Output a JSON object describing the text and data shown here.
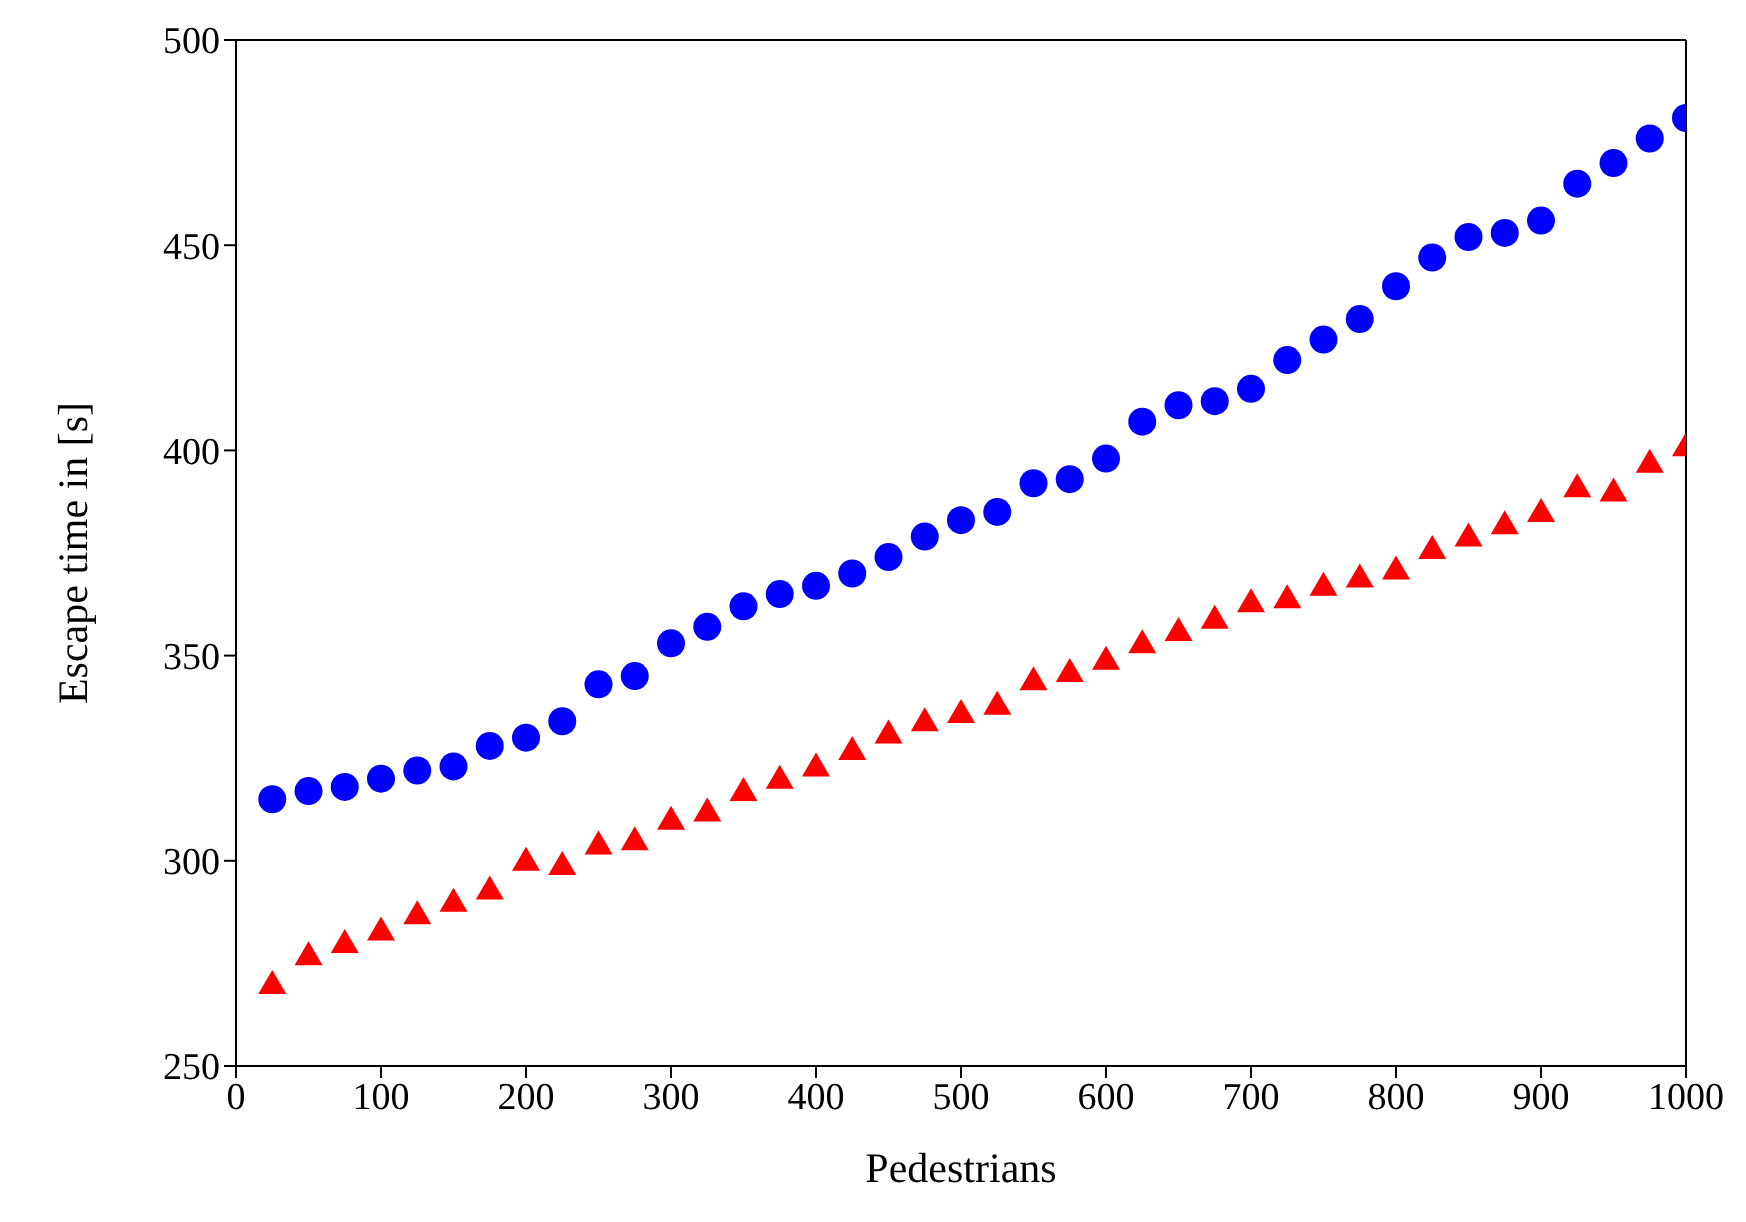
{
  "chart_data": {
    "type": "scatter",
    "xlabel": "Pedestrians",
    "ylabel": "Escape time in [s]",
    "x": [
      25,
      50,
      75,
      100,
      125,
      150,
      175,
      200,
      225,
      250,
      275,
      300,
      325,
      350,
      375,
      400,
      425,
      450,
      475,
      500,
      525,
      550,
      575,
      600,
      625,
      650,
      675,
      700,
      725,
      750,
      775,
      800,
      825,
      850,
      875,
      900,
      925,
      950,
      975,
      1000
    ],
    "series": [
      {
        "color": "#0000ff",
        "marker": "circle",
        "values": [
          315,
          317,
          318,
          320,
          322,
          323,
          328,
          330,
          334,
          343,
          345,
          353,
          357,
          362,
          365,
          367,
          370,
          374,
          379,
          383,
          385,
          392,
          393,
          398,
          407,
          411,
          412,
          415,
          422,
          427,
          432,
          440,
          447,
          452,
          453,
          456,
          465,
          470,
          476,
          481
        ]
      },
      {
        "color": "#ff0000",
        "marker": "triangle",
        "values": [
          270,
          277,
          280,
          283,
          287,
          290,
          293,
          300,
          299,
          304,
          305,
          310,
          312,
          317,
          320,
          323,
          327,
          331,
          334,
          336,
          338,
          344,
          346,
          349,
          353,
          356,
          359,
          363,
          364,
          367,
          369,
          371,
          376,
          379,
          382,
          385,
          391,
          390,
          397,
          401
        ]
      }
    ],
    "xlim": [
      0,
      1000
    ],
    "xticks": [
      0,
      100,
      200,
      300,
      400,
      500,
      600,
      700,
      800,
      900,
      1000
    ],
    "ylim": [
      250,
      500
    ],
    "yticks": [
      250,
      300,
      350,
      400,
      450,
      500
    ]
  }
}
